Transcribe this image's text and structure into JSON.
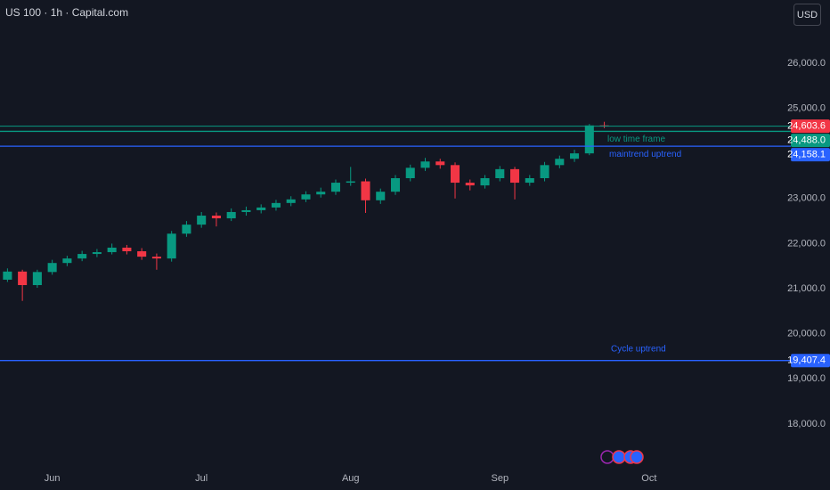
{
  "chart_data": {
    "type": "candlestick",
    "title": "US 100 · 1h · Capital.com",
    "currency": "USD",
    "up_color": "#089981",
    "down_color": "#f23645",
    "categories": [
      null,
      null,
      null,
      "Jun",
      null,
      null,
      null,
      null,
      null,
      null,
      null,
      null,
      null,
      "Jul",
      null,
      null,
      null,
      null,
      null,
      null,
      null,
      null,
      null,
      "Aug",
      null,
      null,
      null,
      null,
      null,
      null,
      null,
      null,
      null,
      "Sep",
      null,
      null,
      null,
      null,
      null,
      null,
      null,
      null,
      null,
      "Oct",
      null,
      null,
      null,
      null,
      null,
      null,
      null,
      null,
      null
    ],
    "open": [
      21200,
      21380,
      21080,
      21370,
      21570,
      21670,
      21770,
      21810,
      21910,
      21830,
      21710,
      21670,
      22220,
      22420,
      22620,
      22560,
      22700,
      22740,
      22800,
      22900,
      22980,
      23090,
      23150,
      23350,
      23380,
      22960,
      23150,
      23450,
      23680,
      23820,
      23740,
      23350,
      23290,
      23450,
      23650,
      23350,
      23450,
      23740,
      23880,
      24000,
      24620,
      null,
      null,
      null,
      null,
      null,
      null,
      null,
      null,
      null,
      null,
      null,
      null
    ],
    "high": [
      21450,
      21420,
      21420,
      21640,
      21730,
      21840,
      21880,
      22000,
      21970,
      21900,
      21780,
      22280,
      22500,
      22700,
      22690,
      22780,
      22820,
      22870,
      22970,
      23050,
      23160,
      23240,
      23420,
      23700,
      23440,
      23220,
      23520,
      23750,
      23900,
      23880,
      23800,
      23420,
      23520,
      23720,
      23700,
      23520,
      23810,
      23950,
      24080,
      24650,
      24700,
      null,
      null,
      null,
      null,
      null,
      null,
      null,
      null,
      null,
      null,
      null,
      null
    ],
    "low": [
      21150,
      20730,
      21020,
      21310,
      21500,
      21610,
      21700,
      21760,
      21760,
      21640,
      21420,
      21600,
      22150,
      22350,
      22380,
      22500,
      22620,
      22670,
      22730,
      22830,
      22920,
      23020,
      23080,
      23280,
      22680,
      22880,
      23080,
      23380,
      23610,
      23660,
      23000,
      23180,
      23220,
      23380,
      22980,
      23280,
      23380,
      23670,
      23810,
      23960,
      24560,
      null,
      null,
      null,
      null,
      null,
      null,
      null,
      null,
      null,
      null,
      null,
      null
    ],
    "close": [
      21380,
      21080,
      21370,
      21570,
      21670,
      21770,
      21810,
      21910,
      21830,
      21710,
      21670,
      22220,
      22420,
      22620,
      22560,
      22700,
      22740,
      22800,
      22900,
      22980,
      23090,
      23150,
      23350,
      23380,
      22960,
      23150,
      23450,
      23680,
      23820,
      23740,
      23350,
      23290,
      23450,
      23650,
      23350,
      23450,
      23740,
      23880,
      24000,
      24620,
      24603.6,
      null,
      null,
      null,
      null,
      null,
      null,
      null,
      null,
      null,
      null,
      null,
      null
    ],
    "last_close_label": "24,603.6",
    "ylim": [
      17130,
      27400
    ],
    "yticks": [
      {
        "value": 18000,
        "label": "18,000.0"
      },
      {
        "value": 19000,
        "label": "19,000.0"
      },
      {
        "value": 20000,
        "label": "20,000.0"
      },
      {
        "value": 21000,
        "label": "21,000.0"
      },
      {
        "value": 22000,
        "label": "22,000.0"
      },
      {
        "value": 23000,
        "label": "23,000.0"
      },
      {
        "value": 25000,
        "label": "25,000.0"
      },
      {
        "value": 26000,
        "label": "26,000.0"
      }
    ],
    "levels": [
      {
        "value": 24488.0,
        "value_label": "24,488.0",
        "color": "#089981",
        "text": "low time frame"
      },
      {
        "value": 24158.1,
        "value_label": "24,158.1",
        "color": "#2962ff",
        "text": "maintrend uptrend"
      },
      {
        "value": 19407.4,
        "value_label": "19,407.4",
        "color": "#2962ff",
        "text": "Cycle uptrend"
      }
    ]
  }
}
